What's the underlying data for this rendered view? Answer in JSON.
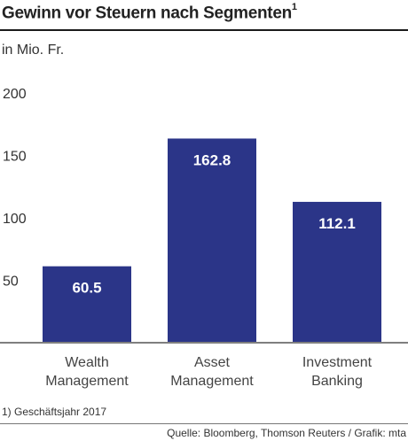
{
  "header": {
    "title": "Gewinn vor Steuern nach Segmenten",
    "title_footnote_marker": "1",
    "unit": "in Mio. Fr."
  },
  "chart_data": {
    "type": "bar",
    "categories": [
      [
        "Wealth",
        "Management"
      ],
      [
        "Asset",
        "Management"
      ],
      [
        "Investment",
        "Banking"
      ]
    ],
    "values": [
      60.5,
      162.8,
      112.1
    ],
    "value_labels": [
      "60.5",
      "162.8",
      "112.1"
    ],
    "yticks": [
      50,
      100,
      150,
      200
    ],
    "ylim": [
      0,
      200
    ],
    "grid": false,
    "bar_color": "#2b3588",
    "label_color": "#ffffff"
  },
  "footer": {
    "footnote": "1) Geschäftsjahr 2017",
    "source": "Quelle: Bloomberg, Thomson Reuters / Grafik: mta"
  }
}
